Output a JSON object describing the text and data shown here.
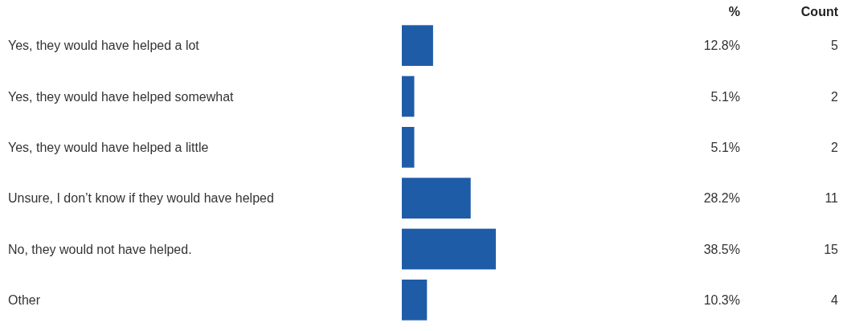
{
  "chart_data": {
    "type": "bar",
    "orientation": "horizontal",
    "categories": [
      "Yes, they would have helped a lot",
      "Yes, they would have helped somewhat",
      "Yes, they would have helped a little",
      "Unsure, I don’t know if they would have helped",
      "No, they would not have helped.",
      "Other"
    ],
    "annotations": [
      "Count",
      "5",
      "2",
      "2",
      "11",
      "15",
      "4"
    ],
    "series": [
      {
        "name": "%",
        "color": "#1f5ca8",
        "values": [
          12.8,
          5.1,
          5.1,
          28.2,
          38.5,
          10.3
        ],
        "value_labels": [
          "12.8%",
          "5.1%",
          "5.1%",
          "28.2%",
          "38.5%",
          "10.3%"
        ]
      }
    ]
  }
}
